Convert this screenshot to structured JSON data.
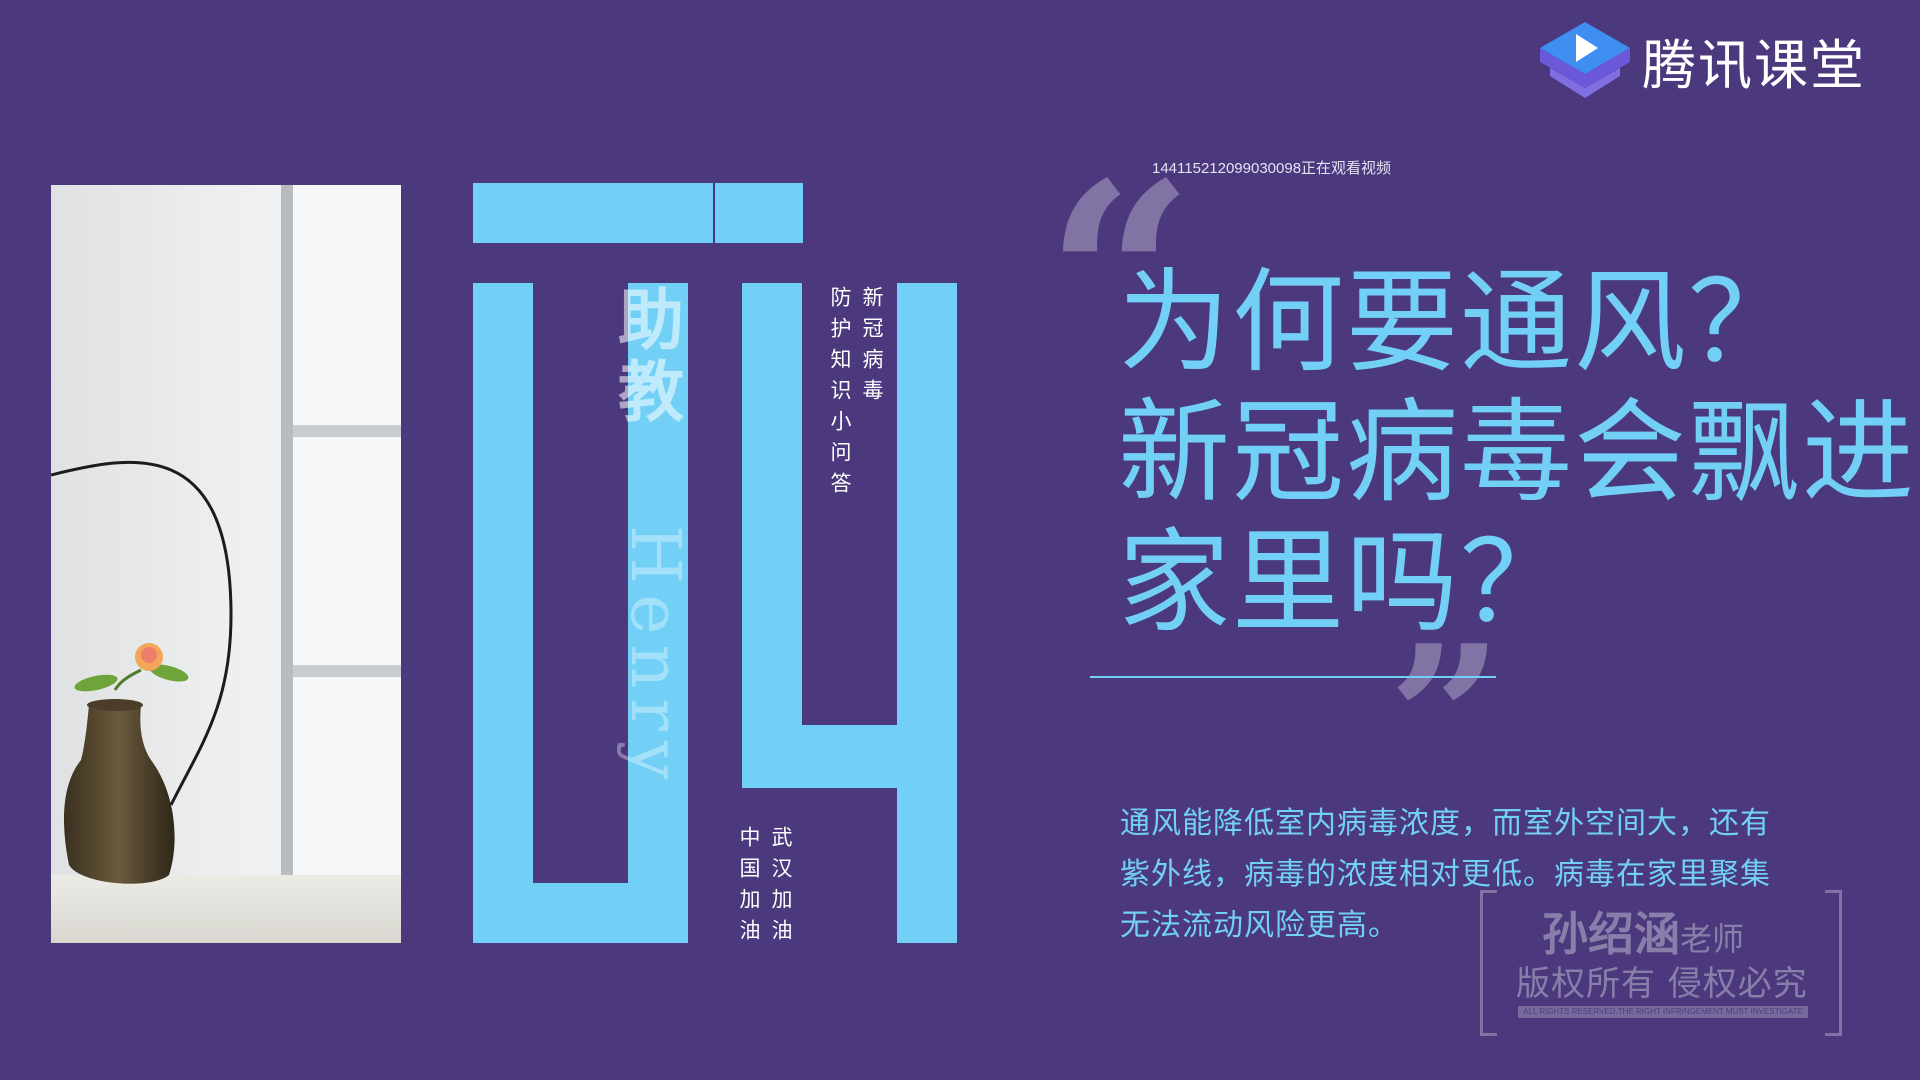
{
  "brand": {
    "logo_text": "腾讯课堂"
  },
  "viewer_notice": "144115212099030098正在观看视频",
  "sidebar_vertical": {
    "assistant": "助教",
    "name": "Henry",
    "series_col1": "新冠病毒",
    "series_col2": "防护知识小问答",
    "cheer_col1": "武汉加油",
    "cheer_col2": "中国加油"
  },
  "title_lines": [
    "为何要通风？",
    "新冠病毒会飘进",
    "家里吗？"
  ],
  "body": "通风能降低室内病毒浓度，而室外空间大，还有紫外线，病毒的浓度相对更低。病毒在家里聚集无法流动风险更高。",
  "watermark": {
    "name": "孙绍涵",
    "title": "老师",
    "copyright": "版权所有 侵权必究",
    "small": "ALL RIGHTS RESERVED.THE RIGHT INFRINGEMENT MUST INVESTIGATE"
  },
  "colors": {
    "background": "#4b387d",
    "accent": "#72d0f7"
  },
  "icons": {
    "logo": "tencent-classroom-logo-icon",
    "quote_open": "quote-open-icon",
    "quote_close": "quote-close-icon"
  }
}
